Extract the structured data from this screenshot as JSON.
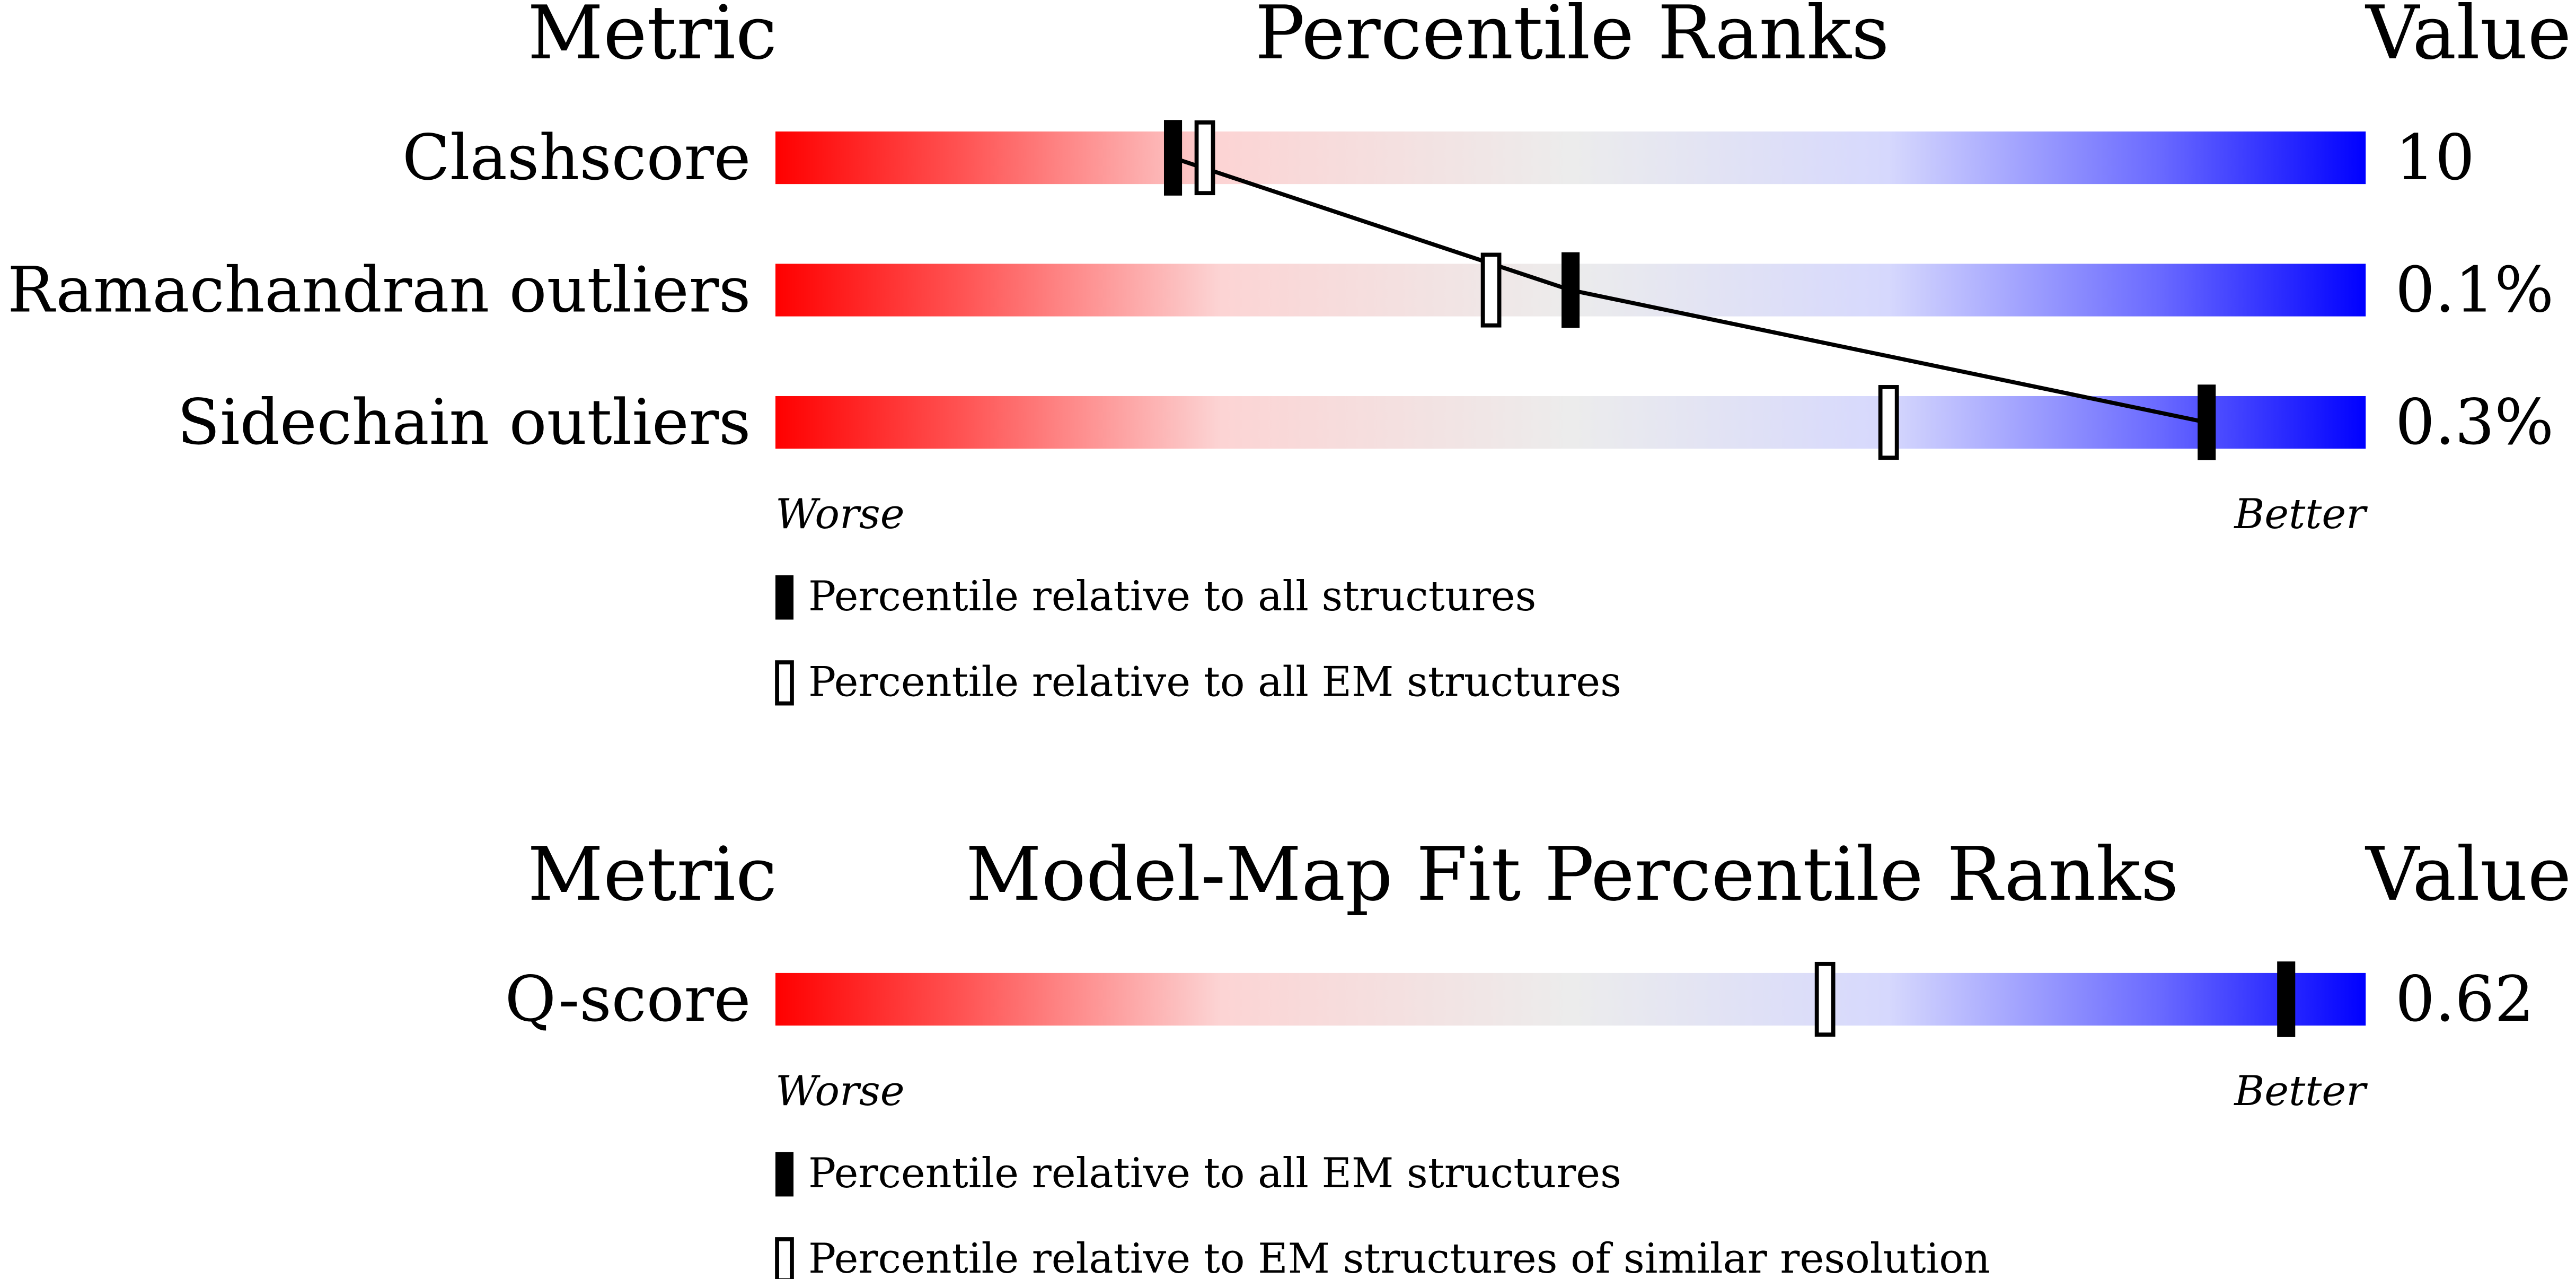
{
  "chart_data": [
    {
      "type": "percentile",
      "header_metric": "Metric",
      "title": "Percentile Ranks",
      "header_value": "Value",
      "xlim": [
        0,
        100
      ],
      "worse": "Worse",
      "better": "Better",
      "connect": true,
      "categories": [
        "Clashscore",
        "Ramachandran outliers",
        "Sidechain outliers"
      ],
      "value_labels": [
        "10",
        "0.1%",
        "0.3%"
      ],
      "series": [
        {
          "name": "Percentile relative to all structures",
          "style": "filled",
          "values": [
            25,
            50,
            90
          ]
        },
        {
          "name": "Percentile relative to all EM structures",
          "style": "open",
          "values": [
            27,
            45,
            70
          ]
        }
      ]
    },
    {
      "type": "percentile",
      "header_metric": "Metric",
      "title": "Model-Map Fit Percentile Ranks",
      "header_value": "Value",
      "xlim": [
        0,
        100
      ],
      "worse": "Worse",
      "better": "Better",
      "connect": false,
      "categories": [
        "Q-score"
      ],
      "value_labels": [
        "0.62"
      ],
      "series": [
        {
          "name": "Percentile relative to all EM structures",
          "style": "filled",
          "values": [
            95
          ]
        },
        {
          "name": "Percentile relative to EM structures of similar resolution",
          "style": "open",
          "values": [
            66
          ]
        }
      ]
    }
  ]
}
